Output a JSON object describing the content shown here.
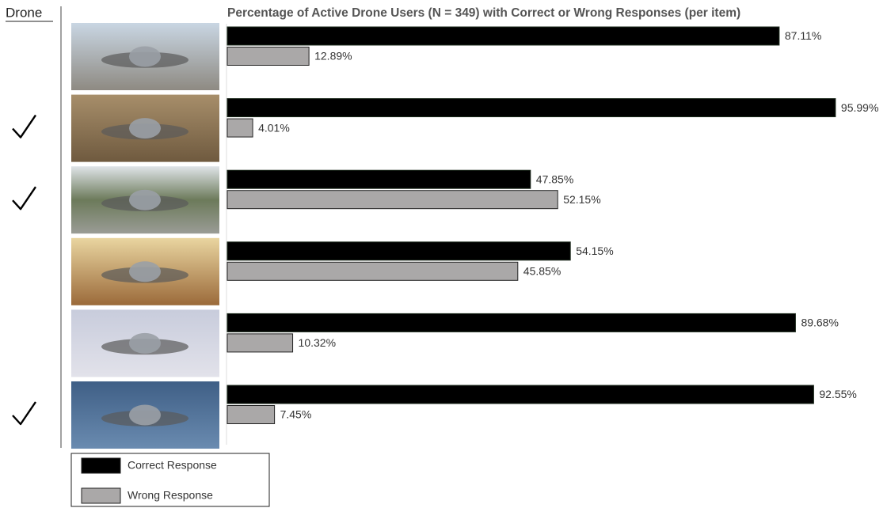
{
  "chart_data": {
    "type": "bar",
    "orientation": "horizontal",
    "title": "Percentage of Active Drone Users (N = 349) with Correct or Wrong Responses (per item)",
    "row_header": "Drone",
    "checks": [
      false,
      true,
      true,
      false,
      false,
      true
    ],
    "xlim": [
      0,
      100
    ],
    "series": [
      {
        "name": "Correct Response",
        "color": "#000000",
        "values": [
          87.11,
          95.99,
          47.85,
          54.15,
          89.68,
          92.55
        ],
        "value_labels": [
          "87.11%",
          "95.99%",
          "47.85%",
          "54.15%",
          "89.68%",
          "92.55%"
        ]
      },
      {
        "name": "Wrong Response",
        "color": "#aaa8a8",
        "values": [
          12.89,
          4.01,
          52.15,
          45.85,
          10.32,
          7.45
        ],
        "value_labels": [
          "12.89%",
          "4.01%",
          "52.15%",
          "45.85%",
          "10.32%",
          "7.45%"
        ]
      }
    ]
  }
}
